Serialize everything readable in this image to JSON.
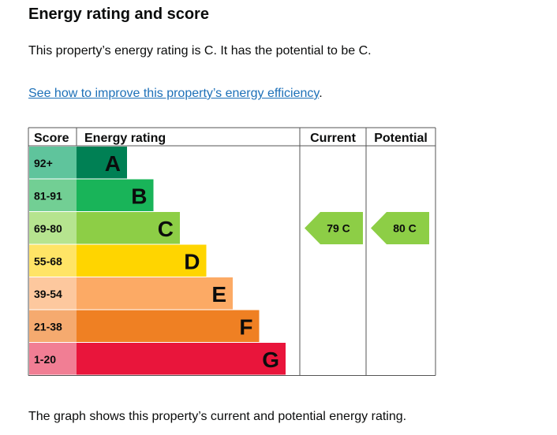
{
  "heading": "Energy rating and score",
  "summary": "This property’s energy rating is C. It has the potential to be C.",
  "link": {
    "text": "See how to improve this property’s energy efficiency",
    "suffix": "."
  },
  "footer": "The graph shows this property’s current and potential energy rating.",
  "chart_data": {
    "type": "table",
    "headers": {
      "score": "Score",
      "rating": "Energy rating",
      "current": "Current",
      "potential": "Potential"
    },
    "bands": [
      {
        "score": "92+",
        "letter": "A",
        "color": "#008054"
      },
      {
        "score": "81-91",
        "letter": "B",
        "color": "#19b459"
      },
      {
        "score": "69-80",
        "letter": "C",
        "color": "#8dce46"
      },
      {
        "score": "55-68",
        "letter": "D",
        "color": "#ffd500"
      },
      {
        "score": "39-54",
        "letter": "E",
        "color": "#fcaa65"
      },
      {
        "score": "21-38",
        "letter": "F",
        "color": "#ef8023"
      },
      {
        "score": "1-20",
        "letter": "G",
        "color": "#e9153b"
      }
    ],
    "score_cell_colors": [
      "#5fc49c",
      "#72cf94",
      "#b6e48f",
      "#ffe466",
      "#fdc89e",
      "#f5aa6f",
      "#f17e94"
    ],
    "current": {
      "score": 79,
      "letter": "C",
      "label": "79  C",
      "color": "#8dce46"
    },
    "potential": {
      "score": 80,
      "letter": "C",
      "label": "80  C",
      "color": "#8dce46"
    }
  }
}
